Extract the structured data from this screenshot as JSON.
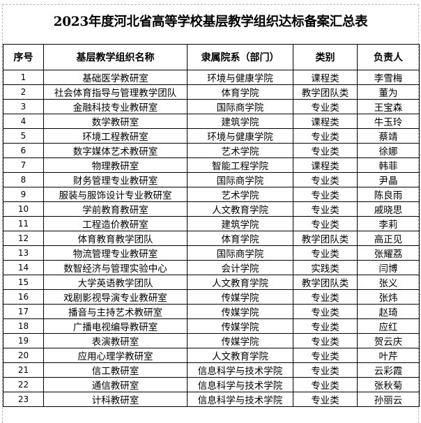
{
  "title": "2023年度河北省高等学校基层教学组织达标备案汇总表",
  "headers": [
    "序号",
    "基层教学组织名称",
    "隶属院系（部门）",
    "类别",
    "负责人"
  ],
  "rows": [
    [
      "1",
      "基础医学教研室",
      "环境与健康学院",
      "课程类",
      "李雪梅"
    ],
    [
      "2",
      "社会体育指导与管理教学团队",
      "体育学院",
      "教学团队类",
      "董为"
    ],
    [
      "3",
      "金融科技专业教研室",
      "国际商学院",
      "专业类",
      "王宝森"
    ],
    [
      "4",
      "数学教研室",
      "建筑学院",
      "课程类",
      "牛玉玲"
    ],
    [
      "5",
      "环境工程教研室",
      "环境与健康学院",
      "专业类",
      "蔡靖"
    ],
    [
      "6",
      "数字媒体艺术教研室",
      "艺术学院",
      "专业类",
      "徐娜"
    ],
    [
      "7",
      "物理教研室",
      "智能工程学院",
      "课程类",
      "韩菲"
    ],
    [
      "8",
      "财务管理专业教研室",
      "国际商学院",
      "专业类",
      "尹晶"
    ],
    [
      "9",
      "服装与服饰设计专业教研室",
      "艺术学院",
      "专业类",
      "陈良雨"
    ],
    [
      "10",
      "学前教育教研室",
      "人文教育学院",
      "专业类",
      "戚晓思"
    ],
    [
      "11",
      "工程造价教研室",
      "建筑学院",
      "专业类",
      "李莉"
    ],
    [
      "12",
      "体育教育教学团队",
      "体育学院",
      "教学团队类",
      "高正见"
    ],
    [
      "13",
      "物流管理专业教研室",
      "国际商学院",
      "专业类",
      "张耀荔"
    ],
    [
      "14",
      "数智经济与管理实验中心",
      "会计学院",
      "实践类",
      "闫博"
    ],
    [
      "15",
      "大学英语教学团队",
      "人文教育学院",
      "教学团队类",
      "张义"
    ],
    [
      "16",
      "戏剧影视导演专业教研室",
      "传媒学院",
      "专业类",
      "张炜"
    ],
    [
      "17",
      "播音与主持艺术教研室",
      "传媒学院",
      "专业类",
      "赵琦"
    ],
    [
      "18",
      "广播电视编导教研室",
      "传媒学院",
      "专业类",
      "应红"
    ],
    [
      "19",
      "表演教研室",
      "传媒学院",
      "专业类",
      "贺云庆"
    ],
    [
      "20",
      "应用心理学教研室",
      "人文教育学院",
      "专业类",
      "叶芹"
    ],
    [
      "21",
      "信工教研室",
      "信息科学与技术学院",
      "专业类",
      "云彩霞"
    ],
    [
      "22",
      "通信教研室",
      "信息科学与技术学院",
      "专业类",
      "张秋菊"
    ],
    [
      "23",
      "计科教研室",
      "信息科学与技术学院",
      "专业类",
      "孙丽云"
    ]
  ]
}
